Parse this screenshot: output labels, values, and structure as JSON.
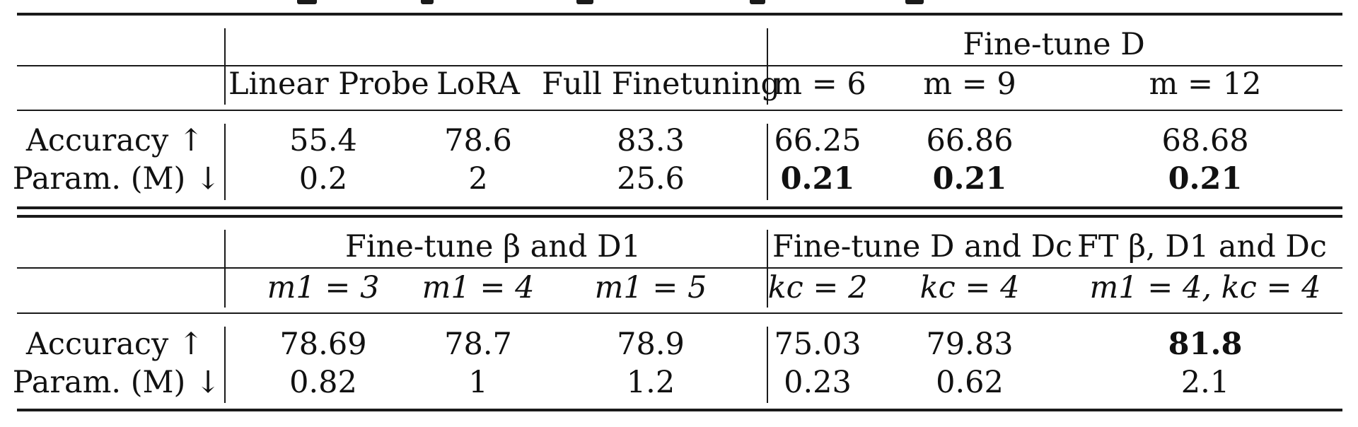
{
  "table": {
    "top": {
      "group_header": "Fine-tune D",
      "columns": [
        "Linear Probe",
        "LoRA",
        "Full Finetuning",
        "m = 6",
        "m = 9",
        "m = 12"
      ],
      "rows": [
        {
          "label": "Accuracy ↑",
          "values": [
            "55.4",
            "78.6",
            "83.3",
            "66.25",
            "66.86",
            "68.68"
          ]
        },
        {
          "label": "Param. (M) ↓",
          "values": [
            "0.2",
            "2",
            "25.6",
            "0.21",
            "0.21",
            "0.21"
          ]
        }
      ]
    },
    "bottom": {
      "group_headers": [
        "Fine-tune β and D1",
        "Fine-tune D and Dc",
        "FT β, D1 and Dc"
      ],
      "columns": [
        "m1 = 3",
        "m1 = 4",
        "m1 = 5",
        "kc = 2",
        "kc = 4",
        "m1 = 4, kc = 4"
      ],
      "rows": [
        {
          "label": "Accuracy ↑",
          "values": [
            "78.69",
            "78.7",
            "78.9",
            "75.03",
            "79.83",
            "81.8"
          ]
        },
        {
          "label": "Param. (M) ↓",
          "values": [
            "0.82",
            "1",
            "1.2",
            "0.23",
            "0.62",
            "2.1"
          ]
        }
      ]
    }
  }
}
